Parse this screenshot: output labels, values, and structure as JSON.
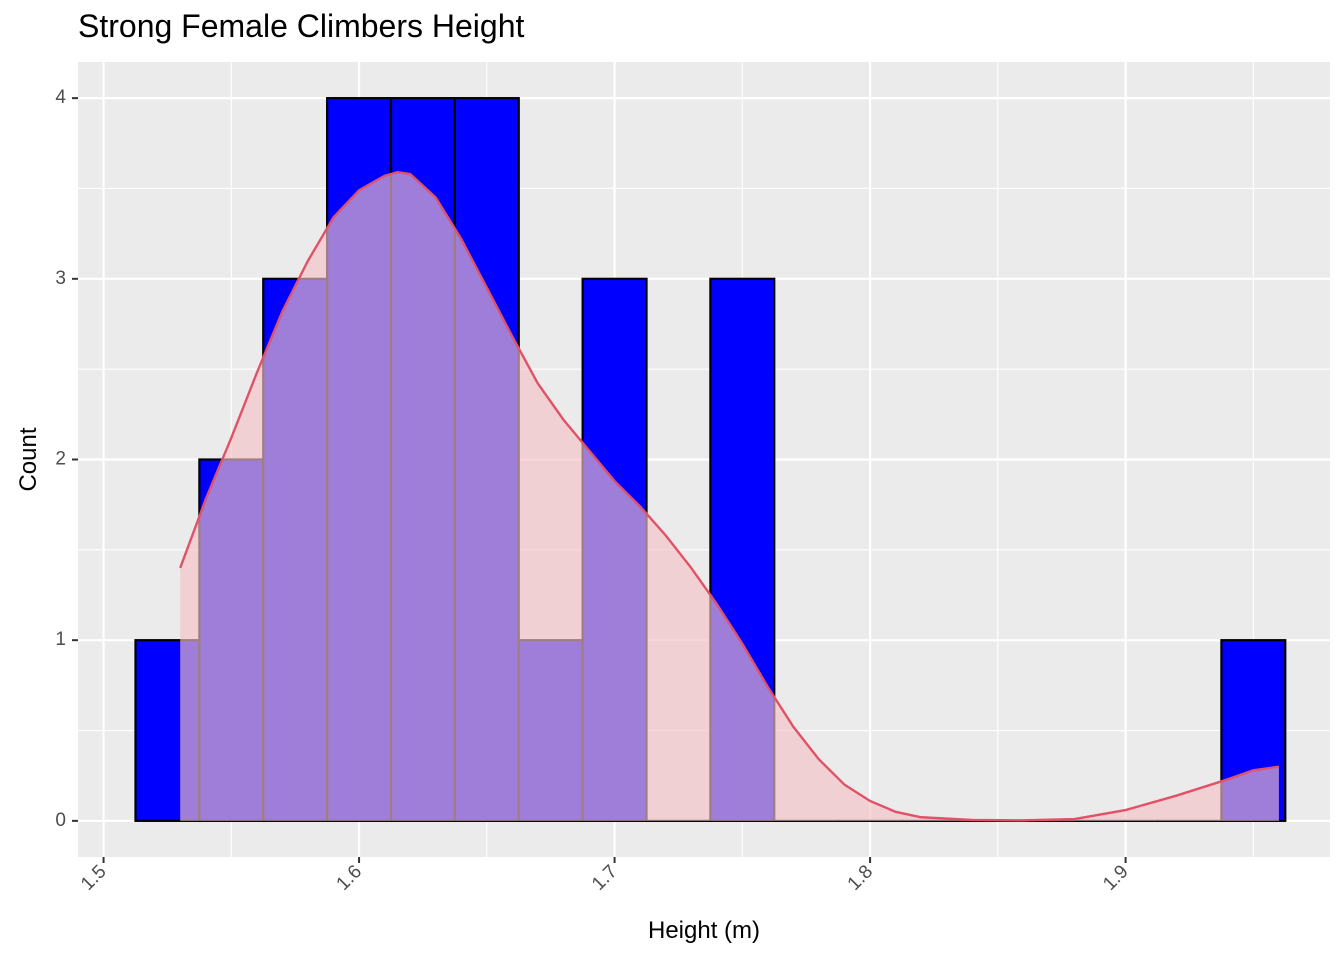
{
  "chart_data": {
    "type": "bar",
    "title": "Strong Female Climbers Height",
    "xlabel": "Height (m)",
    "ylabel": "Count",
    "xlim": [
      1.49,
      1.98
    ],
    "ylim": [
      -0.2,
      4.2
    ],
    "x_ticks": [
      1.5,
      1.6,
      1.7,
      1.8,
      1.9
    ],
    "x_tick_labels": [
      "1.5",
      "1.6",
      "1.7",
      "1.8",
      "1.9"
    ],
    "y_ticks": [
      0,
      1,
      2,
      3,
      4
    ],
    "y_tick_labels": [
      "0",
      "1",
      "2",
      "3",
      "4"
    ],
    "grid": true,
    "bins": [
      {
        "x0": 1.5125,
        "x1": 1.5375,
        "count": 1
      },
      {
        "x0": 1.5375,
        "x1": 1.5625,
        "count": 2
      },
      {
        "x0": 1.5625,
        "x1": 1.5875,
        "count": 3
      },
      {
        "x0": 1.5875,
        "x1": 1.6125,
        "count": 4
      },
      {
        "x0": 1.6125,
        "x1": 1.6375,
        "count": 4
      },
      {
        "x0": 1.6375,
        "x1": 1.6625,
        "count": 4
      },
      {
        "x0": 1.6625,
        "x1": 1.6875,
        "count": 1
      },
      {
        "x0": 1.6875,
        "x1": 1.7125,
        "count": 3
      },
      {
        "x0": 1.7125,
        "x1": 1.7375,
        "count": 0
      },
      {
        "x0": 1.7375,
        "x1": 1.7625,
        "count": 3
      },
      {
        "x0": 1.7625,
        "x1": 1.7875,
        "count": 0
      },
      {
        "x0": 1.7875,
        "x1": 1.8125,
        "count": 0
      },
      {
        "x0": 1.8125,
        "x1": 1.8375,
        "count": 0
      },
      {
        "x0": 1.8375,
        "x1": 1.8625,
        "count": 0
      },
      {
        "x0": 1.8625,
        "x1": 1.8875,
        "count": 0
      },
      {
        "x0": 1.8875,
        "x1": 1.9125,
        "count": 0
      },
      {
        "x0": 1.9125,
        "x1": 1.9375,
        "count": 0
      },
      {
        "x0": 1.9375,
        "x1": 1.9625,
        "count": 1
      }
    ],
    "density_curve": {
      "x": [
        1.53,
        1.54,
        1.55,
        1.56,
        1.57,
        1.58,
        1.59,
        1.6,
        1.61,
        1.615,
        1.62,
        1.63,
        1.64,
        1.65,
        1.66,
        1.67,
        1.68,
        1.69,
        1.7,
        1.71,
        1.72,
        1.73,
        1.74,
        1.75,
        1.76,
        1.77,
        1.78,
        1.79,
        1.8,
        1.81,
        1.82,
        1.84,
        1.86,
        1.88,
        1.9,
        1.92,
        1.94,
        1.95,
        1.96
      ],
      "y": [
        1.4,
        1.78,
        2.12,
        2.48,
        2.82,
        3.1,
        3.34,
        3.49,
        3.57,
        3.59,
        3.58,
        3.45,
        3.22,
        2.95,
        2.68,
        2.42,
        2.22,
        2.05,
        1.88,
        1.74,
        1.58,
        1.4,
        1.2,
        0.98,
        0.74,
        0.52,
        0.34,
        0.2,
        0.11,
        0.05,
        0.02,
        0.005,
        0.003,
        0.01,
        0.06,
        0.14,
        0.23,
        0.28,
        0.3
      ]
    },
    "colors": {
      "bar_fill": "#0000ff",
      "bar_outline": "#000000",
      "density_line": "#e05268",
      "density_fill": "#f4c2c6",
      "panel_background": "#ebebeb",
      "grid": "#ffffff"
    }
  }
}
